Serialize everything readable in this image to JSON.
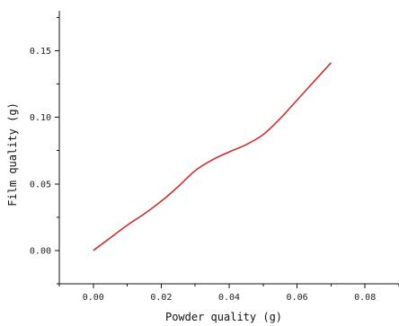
{
  "chart_data": {
    "type": "line",
    "title": "",
    "xlabel": "Powder quality (g)",
    "ylabel": "Film quality (g)",
    "xlim": [
      -0.01,
      0.09
    ],
    "ylim": [
      -0.025,
      0.18
    ],
    "x_ticks": [
      "0.00",
      "0.02",
      "0.04",
      "0.06",
      "0.08"
    ],
    "y_ticks": [
      "0.00",
      "0.05",
      "0.10",
      "0.15"
    ],
    "grid": false,
    "series": [
      {
        "color": "#c8322d",
        "x": [
          0.0,
          0.005,
          0.01,
          0.015,
          0.02,
          0.025,
          0.03,
          0.035,
          0.04,
          0.045,
          0.05,
          0.055,
          0.06,
          0.065,
          0.07
        ],
        "y": [
          0.0,
          0.0095,
          0.019,
          0.0275,
          0.037,
          0.048,
          0.06,
          0.068,
          0.074,
          0.0795,
          0.087,
          0.099,
          0.113,
          0.127,
          0.141
        ]
      }
    ]
  }
}
